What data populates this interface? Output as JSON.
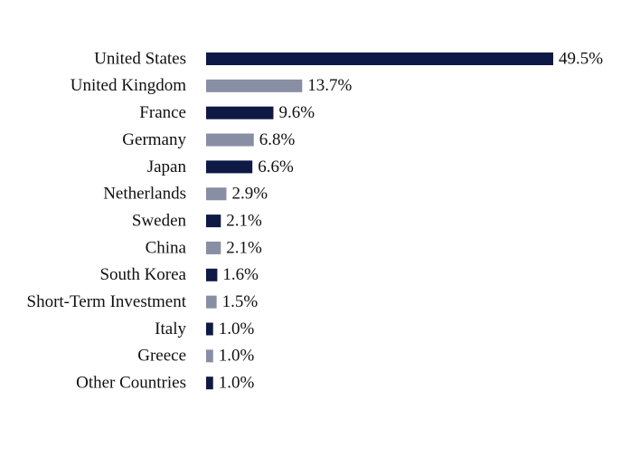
{
  "chart_data": {
    "type": "bar",
    "orientation": "horizontal",
    "categories": [
      "United States",
      "United Kingdom",
      "France",
      "Germany",
      "Japan",
      "Netherlands",
      "Sweden",
      "China",
      "South Korea",
      "Short-Term Investment",
      "Italy",
      "Greece",
      "Other Countries"
    ],
    "values": [
      49.5,
      13.7,
      9.6,
      6.8,
      6.6,
      2.9,
      2.1,
      2.1,
      1.6,
      1.5,
      1.0,
      1.0,
      1.0
    ],
    "value_labels": [
      "49.5%",
      "13.7%",
      "9.6%",
      "6.8%",
      "6.6%",
      "2.9%",
      "2.1%",
      "2.1%",
      "1.6%",
      "1.5%",
      "1.0%",
      "1.0%",
      "1.0%"
    ],
    "colors": [
      "#0e1a45",
      "#888ea4",
      "#0e1a45",
      "#888ea4",
      "#0e1a45",
      "#888ea4",
      "#0e1a45",
      "#888ea4",
      "#0e1a45",
      "#888ea4",
      "#0e1a45",
      "#888ea4",
      "#0e1a45"
    ]
  }
}
